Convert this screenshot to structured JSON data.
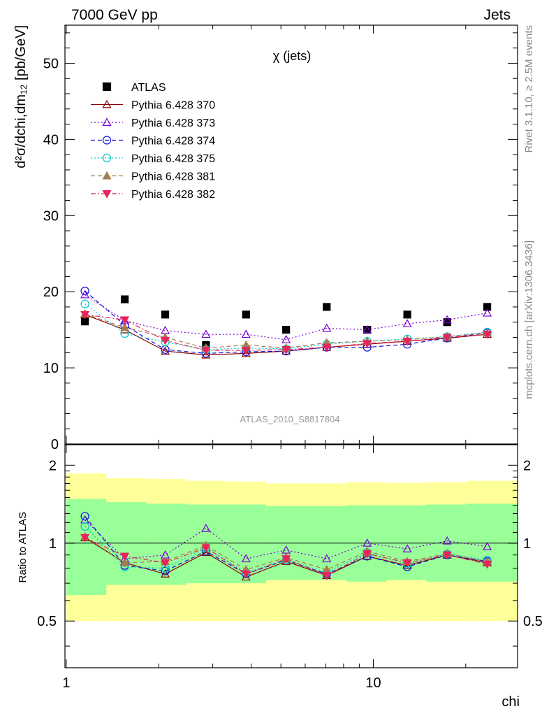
{
  "header": {
    "left": "7000 GeV pp",
    "right": "Jets"
  },
  "side_text": {
    "rivet": "Rivet 3.1.10, ≥ 2.5M events",
    "mcplots": "mcplots.cern.ch [arXiv:1306.3436]"
  },
  "chart_data": [
    {
      "type": "scatter",
      "title": "χ (jets)",
      "watermark": "ATLAS_2010_S8817804",
      "ylabel": "d²σ/dchi,dm₁₂ [pb/GeV]",
      "xlabel": "",
      "x_scale": "log",
      "xlim": [
        0.99,
        29.5
      ],
      "ylim": [
        0,
        55
      ],
      "y_ticks": [
        0,
        10,
        20,
        30,
        40,
        50
      ],
      "legend_position": "top-left",
      "x": [
        1.15,
        1.55,
        2.1,
        2.85,
        3.85,
        5.2,
        7.05,
        9.55,
        12.9,
        17.4,
        23.5
      ],
      "series": [
        {
          "name": "ATLAS",
          "color": "#000000",
          "marker": "filled-square",
          "line": "none",
          "values": [
            16.1,
            19.0,
            17.0,
            13.0,
            17.0,
            15.0,
            18.0,
            15.0,
            17.0,
            16.0,
            18.0
          ]
        },
        {
          "name": "Pythia 6.428 370",
          "color": "#8B0000",
          "marker": "open-triangle-up",
          "line": "solid",
          "values": [
            17.0,
            15.0,
            12.2,
            11.7,
            11.9,
            12.2,
            12.7,
            13.1,
            13.5,
            13.9,
            14.4
          ]
        },
        {
          "name": "Pythia 6.428 373",
          "color": "#7B00D4",
          "marker": "open-triangle-up",
          "line": "dotted",
          "values": [
            19.6,
            16.2,
            14.9,
            14.4,
            14.4,
            13.7,
            15.2,
            15.0,
            15.8,
            16.3,
            17.2
          ]
        },
        {
          "name": "Pythia 6.428 374",
          "color": "#1010E0",
          "marker": "open-circle",
          "line": "dashed",
          "values": [
            20.1,
            15.6,
            12.4,
            11.9,
            12.1,
            12.2,
            12.7,
            12.7,
            13.1,
            13.9,
            14.6
          ]
        },
        {
          "name": "Pythia 6.428 375",
          "color": "#00C8C8",
          "marker": "open-circle",
          "line": "dotted",
          "values": [
            18.4,
            14.5,
            13.4,
            12.4,
            12.6,
            12.5,
            13.1,
            13.5,
            13.8,
            14.1,
            14.7
          ]
        },
        {
          "name": "Pythia 6.428 381",
          "color": "#A67C52",
          "marker": "filled-triangle-up",
          "line": "dashed",
          "values": [
            17.1,
            15.3,
            14.0,
            12.6,
            13.0,
            12.6,
            13.3,
            13.5,
            13.7,
            14.1,
            14.6
          ]
        },
        {
          "name": "Pythia 6.428 382",
          "color": "#E8245A",
          "marker": "filled-triangle-down",
          "line": "dashdot",
          "values": [
            17.0,
            16.3,
            13.6,
            12.3,
            12.3,
            12.4,
            12.7,
            13.2,
            13.5,
            14.0,
            14.4
          ]
        }
      ]
    },
    {
      "type": "scatter",
      "ylabel": "Ratio to ATLAS",
      "xlabel": "chi",
      "x_scale": "log",
      "xlim": [
        0.99,
        29.5
      ],
      "ylim": [
        0.33,
        2.4
      ],
      "y_ticks": [
        0.5,
        1,
        2
      ],
      "x_ticks": [
        1,
        10
      ],
      "reference_line": 1,
      "bin_edges": [
        1.0,
        1.35,
        1.82,
        2.46,
        3.32,
        4.48,
        6.05,
        8.17,
        11.02,
        14.88,
        20.09,
        29.5
      ],
      "bands": [
        {
          "name": "outer",
          "color": "#FFFF99",
          "lo": [
            0.5,
            0.5,
            0.5,
            0.5,
            0.5,
            0.5,
            0.5,
            0.5,
            0.5,
            0.5,
            0.5
          ],
          "hi": [
            1.86,
            1.78,
            1.77,
            1.74,
            1.73,
            1.7,
            1.7,
            1.72,
            1.71,
            1.72,
            1.74
          ]
        },
        {
          "name": "inner",
          "color": "#99FF99",
          "lo": [
            0.63,
            0.69,
            0.69,
            0.7,
            0.7,
            0.72,
            0.72,
            0.71,
            0.72,
            0.71,
            0.71
          ],
          "hi": [
            1.48,
            1.44,
            1.42,
            1.41,
            1.41,
            1.39,
            1.39,
            1.4,
            1.4,
            1.41,
            1.42
          ]
        }
      ],
      "x": [
        1.15,
        1.55,
        2.1,
        2.85,
        3.85,
        5.2,
        7.05,
        9.55,
        12.9,
        17.4,
        23.5
      ],
      "series": [
        {
          "name": "Pythia 6.428 370",
          "values": [
            1.05,
            0.84,
            0.76,
            0.92,
            0.74,
            0.85,
            0.75,
            0.89,
            0.82,
            0.9,
            0.84
          ]
        },
        {
          "name": "Pythia 6.428 373",
          "values": [
            1.23,
            0.87,
            0.9,
            1.14,
            0.87,
            0.94,
            0.87,
            1.0,
            0.95,
            1.02,
            0.97
          ]
        },
        {
          "name": "Pythia 6.428 374",
          "values": [
            1.27,
            0.82,
            0.78,
            0.93,
            0.76,
            0.86,
            0.76,
            0.89,
            0.81,
            0.9,
            0.85
          ]
        },
        {
          "name": "Pythia 6.428 375",
          "values": [
            1.16,
            0.81,
            0.8,
            0.96,
            0.77,
            0.86,
            0.77,
            0.92,
            0.83,
            0.91,
            0.86
          ]
        },
        {
          "name": "Pythia 6.428 381",
          "values": [
            1.06,
            0.84,
            0.85,
            0.98,
            0.79,
            0.88,
            0.79,
            0.93,
            0.85,
            0.91,
            0.85
          ]
        },
        {
          "name": "Pythia 6.428 382",
          "values": [
            1.05,
            0.89,
            0.84,
            0.96,
            0.76,
            0.87,
            0.75,
            0.91,
            0.84,
            0.9,
            0.83
          ]
        }
      ]
    }
  ]
}
